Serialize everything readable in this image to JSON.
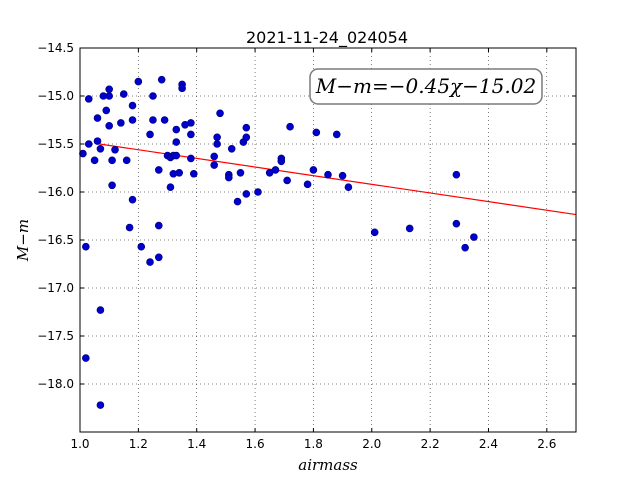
{
  "chart_data": {
    "type": "scatter",
    "title": "2021-11-24_024054",
    "xlabel": "airmass",
    "ylabel": "M−m",
    "xlim": [
      1.0,
      2.7
    ],
    "ylim": [
      -18.5,
      -14.5
    ],
    "y_inverted": true,
    "grid": true,
    "grid_style": "dotted",
    "x_ticks": [
      1.0,
      1.2,
      1.4,
      1.6,
      1.8,
      2.0,
      2.2,
      2.4,
      2.6
    ],
    "x_tick_labels": [
      "1.0",
      "1.2",
      "1.4",
      "1.6",
      "1.8",
      "2.0",
      "2.2",
      "2.4",
      "2.6"
    ],
    "y_ticks": [
      -14.5,
      -15.0,
      -15.5,
      -16.0,
      -16.5,
      -17.0,
      -17.5,
      -18.0
    ],
    "y_tick_labels": [
      "−14.5",
      "−15.0",
      "−15.5",
      "−16.0",
      "−16.5",
      "−17.0",
      "−17.5",
      "−18.0"
    ],
    "annotation": "M−m=−0.45χ−15.02",
    "annotation_position": "top-right",
    "fit_line": {
      "slope": -0.45,
      "intercept": -15.02,
      "color": "#ff0000"
    },
    "marker_color": "#0000cc",
    "points": [
      [
        1.01,
        -15.6
      ],
      [
        1.02,
        -16.57
      ],
      [
        1.02,
        -17.73
      ],
      [
        1.03,
        -15.03
      ],
      [
        1.03,
        -15.5
      ],
      [
        1.05,
        -15.67
      ],
      [
        1.06,
        -15.23
      ],
      [
        1.06,
        -15.47
      ],
      [
        1.07,
        -15.55
      ],
      [
        1.07,
        -17.23
      ],
      [
        1.07,
        -18.22
      ],
      [
        1.08,
        -15.0
      ],
      [
        1.09,
        -15.15
      ],
      [
        1.1,
        -14.93
      ],
      [
        1.1,
        -15.0
      ],
      [
        1.1,
        -15.31
      ],
      [
        1.11,
        -15.67
      ],
      [
        1.11,
        -15.93
      ],
      [
        1.12,
        -15.56
      ],
      [
        1.14,
        -15.28
      ],
      [
        1.15,
        -14.98
      ],
      [
        1.16,
        -15.67
      ],
      [
        1.17,
        -16.37
      ],
      [
        1.18,
        -15.1
      ],
      [
        1.18,
        -15.25
      ],
      [
        1.18,
        -16.08
      ],
      [
        1.2,
        -14.85
      ],
      [
        1.21,
        -16.57
      ],
      [
        1.24,
        -16.73
      ],
      [
        1.24,
        -15.4
      ],
      [
        1.25,
        -15.0
      ],
      [
        1.25,
        -15.25
      ],
      [
        1.27,
        -15.77
      ],
      [
        1.27,
        -16.35
      ],
      [
        1.27,
        -16.68
      ],
      [
        1.28,
        -14.83
      ],
      [
        1.29,
        -15.25
      ],
      [
        1.3,
        -15.62
      ],
      [
        1.31,
        -15.64
      ],
      [
        1.31,
        -15.95
      ],
      [
        1.32,
        -15.62
      ],
      [
        1.32,
        -15.81
      ],
      [
        1.33,
        -15.35
      ],
      [
        1.33,
        -15.48
      ],
      [
        1.33,
        -15.62
      ],
      [
        1.34,
        -15.8
      ],
      [
        1.35,
        -14.88
      ],
      [
        1.35,
        -14.92
      ],
      [
        1.36,
        -15.3
      ],
      [
        1.38,
        -15.28
      ],
      [
        1.38,
        -15.4
      ],
      [
        1.38,
        -15.65
      ],
      [
        1.39,
        -15.81
      ],
      [
        1.46,
        -15.63
      ],
      [
        1.46,
        -15.72
      ],
      [
        1.47,
        -15.43
      ],
      [
        1.47,
        -15.5
      ],
      [
        1.48,
        -15.18
      ],
      [
        1.51,
        -15.82
      ],
      [
        1.51,
        -15.85
      ],
      [
        1.52,
        -15.55
      ],
      [
        1.54,
        -16.1
      ],
      [
        1.55,
        -15.8
      ],
      [
        1.56,
        -15.48
      ],
      [
        1.57,
        -15.33
      ],
      [
        1.57,
        -15.43
      ],
      [
        1.57,
        -16.02
      ],
      [
        1.61,
        -16.0
      ],
      [
        1.65,
        -15.8
      ],
      [
        1.67,
        -15.77
      ],
      [
        1.69,
        -15.65
      ],
      [
        1.69,
        -15.68
      ],
      [
        1.71,
        -15.88
      ],
      [
        1.72,
        -15.32
      ],
      [
        1.78,
        -15.92
      ],
      [
        1.8,
        -15.77
      ],
      [
        1.81,
        -15.38
      ],
      [
        1.85,
        -15.82
      ],
      [
        1.88,
        -15.4
      ],
      [
        1.9,
        -15.83
      ],
      [
        1.92,
        -15.95
      ],
      [
        2.01,
        -16.42
      ],
      [
        2.13,
        -16.38
      ],
      [
        2.29,
        -15.82
      ],
      [
        2.29,
        -16.33
      ],
      [
        2.32,
        -16.58
      ],
      [
        2.35,
        -16.47
      ]
    ]
  }
}
